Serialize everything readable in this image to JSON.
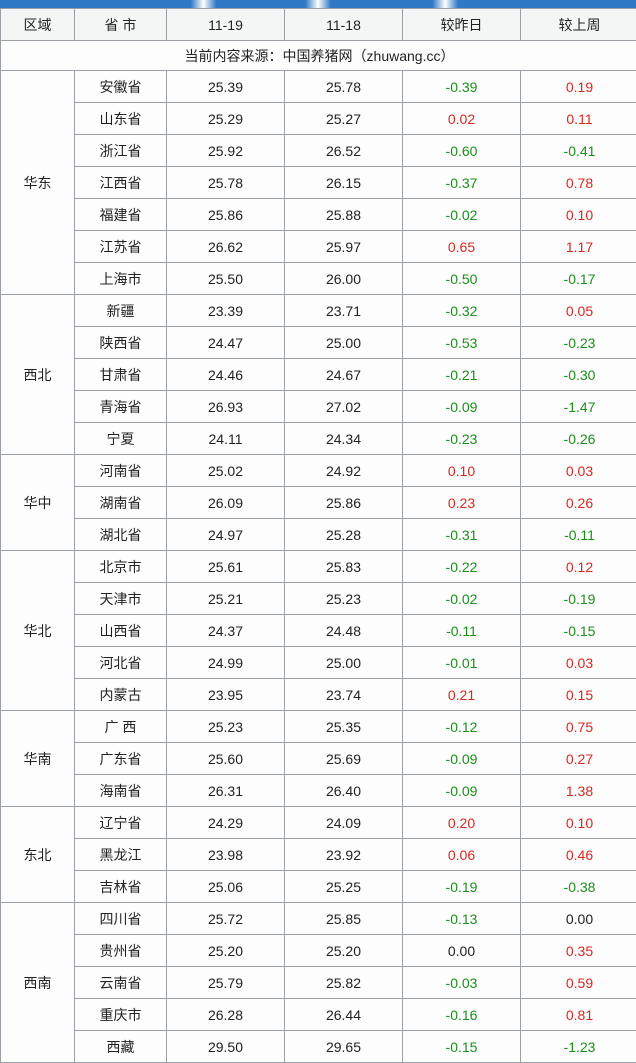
{
  "colors": {
    "border": "#9aa0a6",
    "header_bg": "#f4f6f5",
    "cell_bg": "#fcfdfc",
    "text": "#222222",
    "pos": "#d6281f",
    "neg": "#1a8f1a",
    "source_text": "#222222"
  },
  "watermark_note": "中国养猪网 ZHUWANG.CC",
  "table": {
    "type": "table",
    "headers": [
      "区域",
      "省 市",
      "11-19",
      "11-18",
      "较昨日",
      "较上周"
    ],
    "source_line": "当前内容来源：中国养猪网（zhuwang.cc）",
    "column_align": [
      "center",
      "center",
      "center",
      "center",
      "center",
      "center"
    ],
    "regions": [
      {
        "name": "华东",
        "rows": [
          {
            "prov": "安徽省",
            "a": "25.39",
            "b": "25.78",
            "d1": "-0.39",
            "d2": "0.19"
          },
          {
            "prov": "山东省",
            "a": "25.29",
            "b": "25.27",
            "d1": "0.02",
            "d2": "0.11"
          },
          {
            "prov": "浙江省",
            "a": "25.92",
            "b": "26.52",
            "d1": "-0.60",
            "d2": "-0.41"
          },
          {
            "prov": "江西省",
            "a": "25.78",
            "b": "26.15",
            "d1": "-0.37",
            "d2": "0.78"
          },
          {
            "prov": "福建省",
            "a": "25.86",
            "b": "25.88",
            "d1": "-0.02",
            "d2": "0.10"
          },
          {
            "prov": "江苏省",
            "a": "26.62",
            "b": "25.97",
            "d1": "0.65",
            "d2": "1.17"
          },
          {
            "prov": "上海市",
            "a": "25.50",
            "b": "26.00",
            "d1": "-0.50",
            "d2": "-0.17"
          }
        ]
      },
      {
        "name": "西北",
        "rows": [
          {
            "prov": "新疆",
            "a": "23.39",
            "b": "23.71",
            "d1": "-0.32",
            "d2": "0.05"
          },
          {
            "prov": "陕西省",
            "a": "24.47",
            "b": "25.00",
            "d1": "-0.53",
            "d2": "-0.23"
          },
          {
            "prov": "甘肃省",
            "a": "24.46",
            "b": "24.67",
            "d1": "-0.21",
            "d2": "-0.30"
          },
          {
            "prov": "青海省",
            "a": "26.93",
            "b": "27.02",
            "d1": "-0.09",
            "d2": "-1.47"
          },
          {
            "prov": "宁夏",
            "a": "24.11",
            "b": "24.34",
            "d1": "-0.23",
            "d2": "-0.26"
          }
        ]
      },
      {
        "name": "华中",
        "rows": [
          {
            "prov": "河南省",
            "a": "25.02",
            "b": "24.92",
            "d1": "0.10",
            "d2": "0.03"
          },
          {
            "prov": "湖南省",
            "a": "26.09",
            "b": "25.86",
            "d1": "0.23",
            "d2": "0.26"
          },
          {
            "prov": "湖北省",
            "a": "24.97",
            "b": "25.28",
            "d1": "-0.31",
            "d2": "-0.11"
          }
        ]
      },
      {
        "name": "华北",
        "rows": [
          {
            "prov": "北京市",
            "a": "25.61",
            "b": "25.83",
            "d1": "-0.22",
            "d2": "0.12"
          },
          {
            "prov": "天津市",
            "a": "25.21",
            "b": "25.23",
            "d1": "-0.02",
            "d2": "-0.19"
          },
          {
            "prov": "山西省",
            "a": "24.37",
            "b": "24.48",
            "d1": "-0.11",
            "d2": "-0.15"
          },
          {
            "prov": "河北省",
            "a": "24.99",
            "b": "25.00",
            "d1": "-0.01",
            "d2": "0.03"
          },
          {
            "prov": "内蒙古",
            "a": "23.95",
            "b": "23.74",
            "d1": "0.21",
            "d2": "0.15"
          }
        ]
      },
      {
        "name": "华南",
        "rows": [
          {
            "prov": "广 西",
            "a": "25.23",
            "b": "25.35",
            "d1": "-0.12",
            "d2": "0.75"
          },
          {
            "prov": "广东省",
            "a": "25.60",
            "b": "25.69",
            "d1": "-0.09",
            "d2": "0.27"
          },
          {
            "prov": "海南省",
            "a": "26.31",
            "b": "26.40",
            "d1": "-0.09",
            "d2": "1.38"
          }
        ]
      },
      {
        "name": "东北",
        "rows": [
          {
            "prov": "辽宁省",
            "a": "24.29",
            "b": "24.09",
            "d1": "0.20",
            "d2": "0.10"
          },
          {
            "prov": "黑龙江",
            "a": "23.98",
            "b": "23.92",
            "d1": "0.06",
            "d2": "0.46"
          },
          {
            "prov": "吉林省",
            "a": "25.06",
            "b": "25.25",
            "d1": "-0.19",
            "d2": "-0.38"
          }
        ]
      },
      {
        "name": "西南",
        "rows": [
          {
            "prov": "四川省",
            "a": "25.72",
            "b": "25.85",
            "d1": "-0.13",
            "d2": "0.00"
          },
          {
            "prov": "贵州省",
            "a": "25.20",
            "b": "25.20",
            "d1": "0.00",
            "d2": "0.35"
          },
          {
            "prov": "云南省",
            "a": "25.79",
            "b": "25.82",
            "d1": "-0.03",
            "d2": "0.59"
          },
          {
            "prov": "重庆市",
            "a": "26.28",
            "b": "26.44",
            "d1": "-0.16",
            "d2": "0.81"
          },
          {
            "prov": "西藏",
            "a": "29.50",
            "b": "29.65",
            "d1": "-0.15",
            "d2": "-1.23"
          }
        ]
      }
    ]
  }
}
